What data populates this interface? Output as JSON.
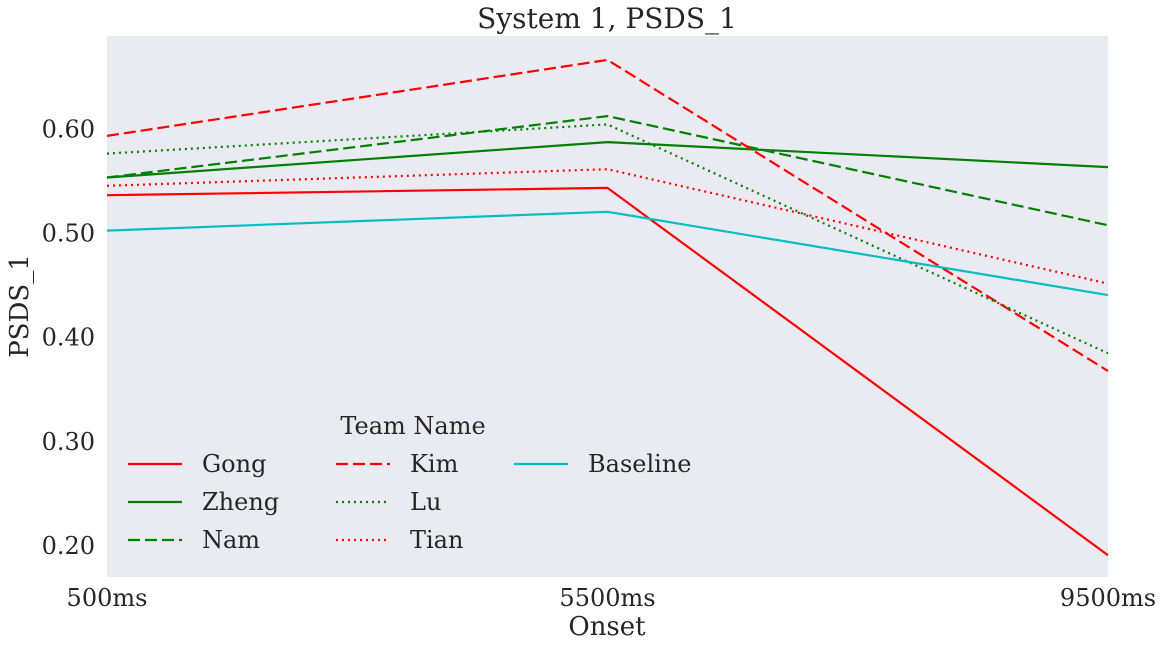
{
  "chart_data": {
    "type": "line",
    "title": "System 1, PSDS_1",
    "xlabel": "Onset",
    "ylabel": "PSDS_1",
    "categories": [
      "500ms",
      "5500ms",
      "9500ms"
    ],
    "ylim": [
      0.17,
      0.69
    ],
    "yticks": [
      0.2,
      0.3,
      0.4,
      0.5,
      0.6
    ],
    "ytick_labels": [
      "0.20",
      "0.30",
      "0.40",
      "0.50",
      "0.60"
    ],
    "grid": false,
    "legend": {
      "title": "Team Name",
      "location": "lower-left",
      "columns": 3
    },
    "series": [
      {
        "name": "Gong",
        "values": [
          0.537,
          0.544,
          0.191
        ],
        "color": "#ff0000",
        "dash": "solid"
      },
      {
        "name": "Zheng",
        "values": [
          0.554,
          0.588,
          0.564
        ],
        "color": "#008000",
        "dash": "solid"
      },
      {
        "name": "Nam",
        "values": [
          0.554,
          0.613,
          0.508
        ],
        "color": "#008000",
        "dash": "dashed"
      },
      {
        "name": "Kim",
        "values": [
          0.594,
          0.667,
          0.368
        ],
        "color": "#ff0000",
        "dash": "dashed"
      },
      {
        "name": "Lu",
        "values": [
          0.577,
          0.605,
          0.385
        ],
        "color": "#008000",
        "dash": "dotted"
      },
      {
        "name": "Tian",
        "values": [
          0.546,
          0.562,
          0.452
        ],
        "color": "#ff0000",
        "dash": "dotted"
      },
      {
        "name": "Baseline",
        "values": [
          0.503,
          0.521,
          0.441
        ],
        "color": "#00bfbf",
        "dash": "solid"
      }
    ]
  }
}
